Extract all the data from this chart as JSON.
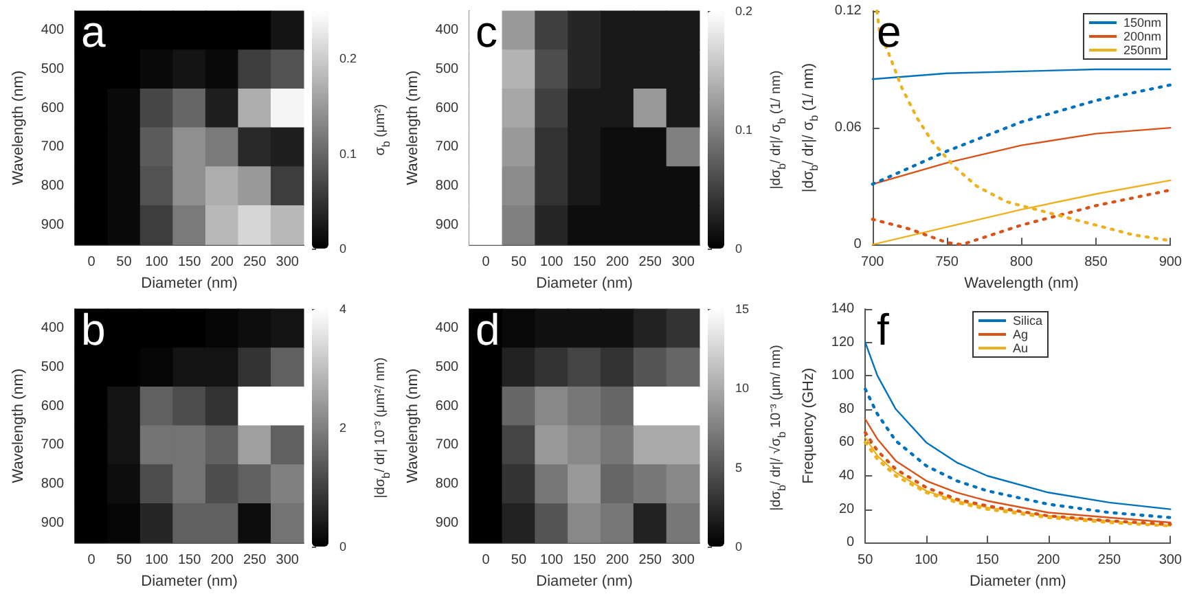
{
  "chart_data": [
    {
      "type": "heatmap",
      "title": "a",
      "xlabel": "Diameter (nm)",
      "ylabel": "Wavelength (nm)",
      "clabel": "σ$_{b}$ (μm²)",
      "categories": [
        "0",
        "50",
        "100",
        "150",
        "200",
        "250",
        "300"
      ],
      "y_categories": [
        "400",
        "500",
        "600",
        "700",
        "800",
        "900"
      ],
      "cells": [
        [
          0,
          0,
          0,
          0,
          0,
          0,
          0.02
        ],
        [
          0,
          0,
          0.01,
          0.02,
          0.01,
          0.06,
          0.08
        ],
        [
          0,
          0.01,
          0.07,
          0.1,
          0.03,
          0.17,
          0.24
        ],
        [
          0,
          0.01,
          0.09,
          0.14,
          0.12,
          0.04,
          0.03
        ],
        [
          0,
          0.01,
          0.08,
          0.14,
          0.17,
          0.15,
          0.06
        ],
        [
          0,
          0.01,
          0.06,
          0.12,
          0.18,
          0.21,
          0.18
        ]
      ],
      "clim": [
        0,
        0.25
      ],
      "cticks": [
        0,
        0.1,
        0.2
      ]
    },
    {
      "type": "heatmap",
      "title": "c",
      "xlabel": "Diameter (nm)",
      "ylabel": "Wavelength (nm)",
      "clabel": "|dσ$_{b}$/ dr|/ σ$_{b}$ (1/ nm)",
      "categories": [
        "0",
        "50",
        "100",
        "150",
        "200",
        "250",
        "300"
      ],
      "y_categories": [
        "400",
        "500",
        "600",
        "700",
        "800",
        "900"
      ],
      "cells": [
        [
          0.2,
          0.12,
          0.05,
          0.03,
          0.02,
          0.02,
          0.02
        ],
        [
          0.2,
          0.14,
          0.06,
          0.03,
          0.02,
          0.02,
          0.02
        ],
        [
          0.2,
          0.13,
          0.05,
          0.02,
          0.02,
          0.12,
          0.02
        ],
        [
          0.2,
          0.12,
          0.04,
          0.02,
          0.01,
          0.01,
          0.1
        ],
        [
          0.2,
          0.11,
          0.04,
          0.02,
          0.01,
          0.01,
          0.01
        ],
        [
          0.2,
          0.1,
          0.03,
          0.01,
          0.01,
          0.01,
          0.01
        ]
      ],
      "clim": [
        0,
        0.2
      ],
      "cticks": [
        0,
        0.1,
        0.2
      ]
    },
    {
      "type": "line",
      "title": "e",
      "xlabel": "Wavelength (nm)",
      "ylabel": "|dσ$_{b}$/ dr|/ σ$_{b}$ (1/ nm)",
      "xlim": [
        700,
        900
      ],
      "xticks": [
        700,
        750,
        800,
        850,
        900
      ],
      "ylim": [
        0,
        0.12
      ],
      "yticks": [
        0,
        0.06,
        0.12
      ],
      "legend": "top right",
      "marker": "none",
      "series": [
        {
          "name": "150nm",
          "color": "#0072bd",
          "line_style": "solid",
          "x": [
            700,
            750,
            800,
            850,
            900
          ],
          "values": [
            0.085,
            0.088,
            0.089,
            0.09,
            0.09
          ]
        },
        {
          "name": "200nm",
          "color": "#d95319",
          "line_style": "solid",
          "x": [
            700,
            750,
            800,
            850,
            900
          ],
          "values": [
            0.031,
            0.042,
            0.051,
            0.057,
            0.06
          ]
        },
        {
          "name": "250nm",
          "color": "#edb120",
          "line_style": "solid",
          "x": [
            700,
            750,
            800,
            850,
            900
          ],
          "values": [
            0,
            0.009,
            0.018,
            0.026,
            0.033
          ]
        },
        {
          "color": "#0072bd",
          "line_style": "dotted",
          "x": [
            700,
            750,
            800,
            850,
            900
          ],
          "values": [
            0.031,
            0.048,
            0.063,
            0.074,
            0.082
          ]
        },
        {
          "color": "#d95319",
          "line_style": "dotted",
          "x": [
            700,
            725,
            750,
            760,
            800,
            850,
            900
          ],
          "values": [
            0.013,
            0.008,
            0.001,
            0,
            0.01,
            0.02,
            0.028
          ]
        },
        {
          "color": "#edb120",
          "line_style": "dotted",
          "x": [
            703,
            705,
            710,
            715,
            720,
            730,
            740,
            755,
            770,
            790,
            810,
            830,
            850,
            875,
            900
          ],
          "values": [
            0.12,
            0.108,
            0.1,
            0.09,
            0.08,
            0.065,
            0.053,
            0.04,
            0.03,
            0.022,
            0.018,
            0.014,
            0.01,
            0.005,
            0.002
          ]
        }
      ]
    },
    {
      "type": "heatmap",
      "title": "b",
      "xlabel": "Diameter (nm)",
      "ylabel": "Wavelength (nm)",
      "clabel": "|dσ$_{b}$/ dr| 10⁻³ (μm²/ nm)",
      "categories": [
        "0",
        "50",
        "100",
        "150",
        "200",
        "250",
        "300"
      ],
      "y_categories": [
        "400",
        "500",
        "600",
        "700",
        "800",
        "900"
      ],
      "cells": [
        [
          0,
          0,
          0,
          0,
          0.1,
          0.2,
          0.3
        ],
        [
          0,
          0,
          0.1,
          0.3,
          0.3,
          0.8,
          1.5
        ],
        [
          0,
          0.3,
          1.5,
          1.2,
          0.8,
          4,
          4
        ],
        [
          0,
          0.3,
          1.8,
          1.8,
          1.5,
          2.5,
          1.5
        ],
        [
          0,
          0.2,
          1.2,
          1.8,
          1.2,
          1.5,
          2
        ],
        [
          0,
          0.1,
          0.6,
          1.5,
          1.5,
          0.2,
          1.8
        ]
      ],
      "clim": [
        0,
        4
      ],
      "cticks": [
        0,
        2,
        4
      ]
    },
    {
      "type": "heatmap",
      "title": "d",
      "xlabel": "Diameter (nm)",
      "ylabel": "Wavelength (nm)",
      "clabel": "|dσ$_{b}$/ dr|/ √σ$_{b}$ 10⁻³ (μm/ nm)",
      "categories": [
        "0",
        "50",
        "100",
        "150",
        "200",
        "250",
        "300"
      ],
      "y_categories": [
        "400",
        "500",
        "600",
        "700",
        "800",
        "900"
      ],
      "cells": [
        [
          0,
          0.5,
          1,
          1,
          1,
          2,
          3
        ],
        [
          0,
          2,
          3,
          4,
          3,
          5,
          6
        ],
        [
          0,
          6,
          8,
          7,
          6,
          15,
          15
        ],
        [
          0,
          4,
          9,
          8,
          7,
          10,
          10
        ],
        [
          0,
          3,
          7,
          9,
          6,
          7,
          8
        ],
        [
          0,
          2,
          5,
          8,
          7,
          2,
          7
        ]
      ],
      "clim": [
        0,
        15
      ],
      "cticks": [
        0,
        5,
        10,
        15
      ]
    },
    {
      "type": "line",
      "title": "f",
      "xlabel": "Diameter (nm)",
      "ylabel": "Frequency (GHz)",
      "xlim": [
        50,
        300
      ],
      "xticks": [
        50,
        100,
        150,
        200,
        250,
        300
      ],
      "ylim": [
        0,
        140
      ],
      "yticks": [
        0,
        20,
        40,
        60,
        80,
        100,
        120,
        140
      ],
      "legend": "top",
      "marker": "none",
      "series": [
        {
          "name": "Silica",
          "color": "#0072bd",
          "line_style": "solid",
          "x": [
            50,
            60,
            75,
            100,
            125,
            150,
            200,
            250,
            300
          ],
          "values": [
            120,
            100,
            80,
            60,
            48,
            40,
            30,
            24,
            20
          ]
        },
        {
          "name": "Ag",
          "color": "#d95319",
          "line_style": "solid",
          "x": [
            50,
            60,
            75,
            100,
            125,
            150,
            200,
            250,
            300
          ],
          "values": [
            74,
            62,
            49,
            37,
            30,
            25,
            18,
            15,
            12
          ]
        },
        {
          "name": "Au",
          "color": "#edb120",
          "line_style": "solid",
          "x": [
            50,
            60,
            75,
            100,
            125,
            150,
            200,
            250,
            300
          ],
          "values": [
            63,
            52,
            42,
            31,
            25,
            21,
            16,
            13,
            10
          ]
        },
        {
          "color": "#0072bd",
          "line_style": "dotted",
          "x": [
            50,
            60,
            75,
            100,
            125,
            150,
            200,
            250,
            300
          ],
          "values": [
            92,
            77,
            61,
            46,
            37,
            31,
            23,
            18,
            15
          ]
        },
        {
          "color": "#d95319",
          "line_style": "dotted",
          "x": [
            50,
            60,
            75,
            100,
            125,
            150,
            200,
            250,
            300
          ],
          "values": [
            66,
            55,
            44,
            33,
            26,
            22,
            16,
            13,
            11
          ]
        },
        {
          "color": "#edb120",
          "line_style": "dotted",
          "x": [
            50,
            60,
            75,
            100,
            125,
            150,
            200,
            250,
            300
          ],
          "values": [
            60,
            50,
            40,
            30,
            24,
            20,
            15,
            12,
            10
          ]
        }
      ]
    }
  ]
}
